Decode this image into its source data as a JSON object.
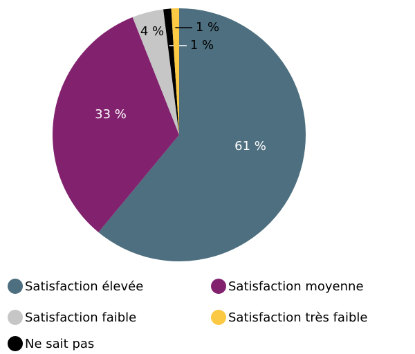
{
  "chart_data": {
    "type": "pie",
    "categories": [
      "Satisfaction élevée",
      "Satisfaction moyenne",
      "Satisfaction faible",
      "Satisfaction très faible",
      "Ne sait pas"
    ],
    "values": [
      61,
      33,
      4,
      1,
      1
    ],
    "value_labels": [
      "61 %",
      "33 %",
      "4 %",
      "1 %",
      "1 %"
    ],
    "colors": [
      "#4d6f7f",
      "#82226e",
      "#c6c6c6",
      "#fbc943",
      "#000000"
    ],
    "legend": "bottom"
  }
}
